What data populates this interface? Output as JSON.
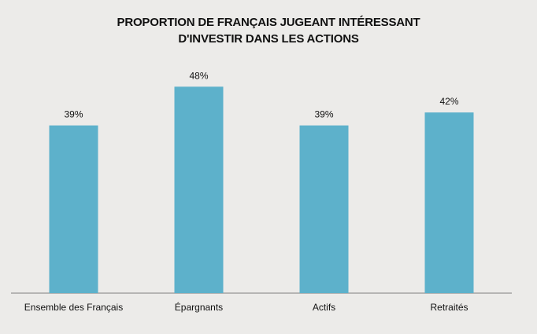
{
  "chart_data": {
    "type": "bar",
    "title_lines": [
      "PROPORTION DE FRANÇAIS JUGEANT INTÉRESSANT",
      "D'INVESTIR DANS LES ACTIONS"
    ],
    "categories": [
      "Ensemble des Français",
      "Épargnants",
      "Actifs",
      "Retraités"
    ],
    "values": [
      39,
      48,
      39,
      42
    ],
    "value_labels": [
      "39%",
      "48%",
      "39%",
      "42%"
    ],
    "xlabel": "",
    "ylabel": "",
    "ylim": [
      0,
      55
    ],
    "grid": false,
    "legend": "none",
    "colors": {
      "bar": "#5db1cb",
      "axis": "#7f7f7f",
      "background": "#ecebe9",
      "text": "#111111"
    }
  }
}
